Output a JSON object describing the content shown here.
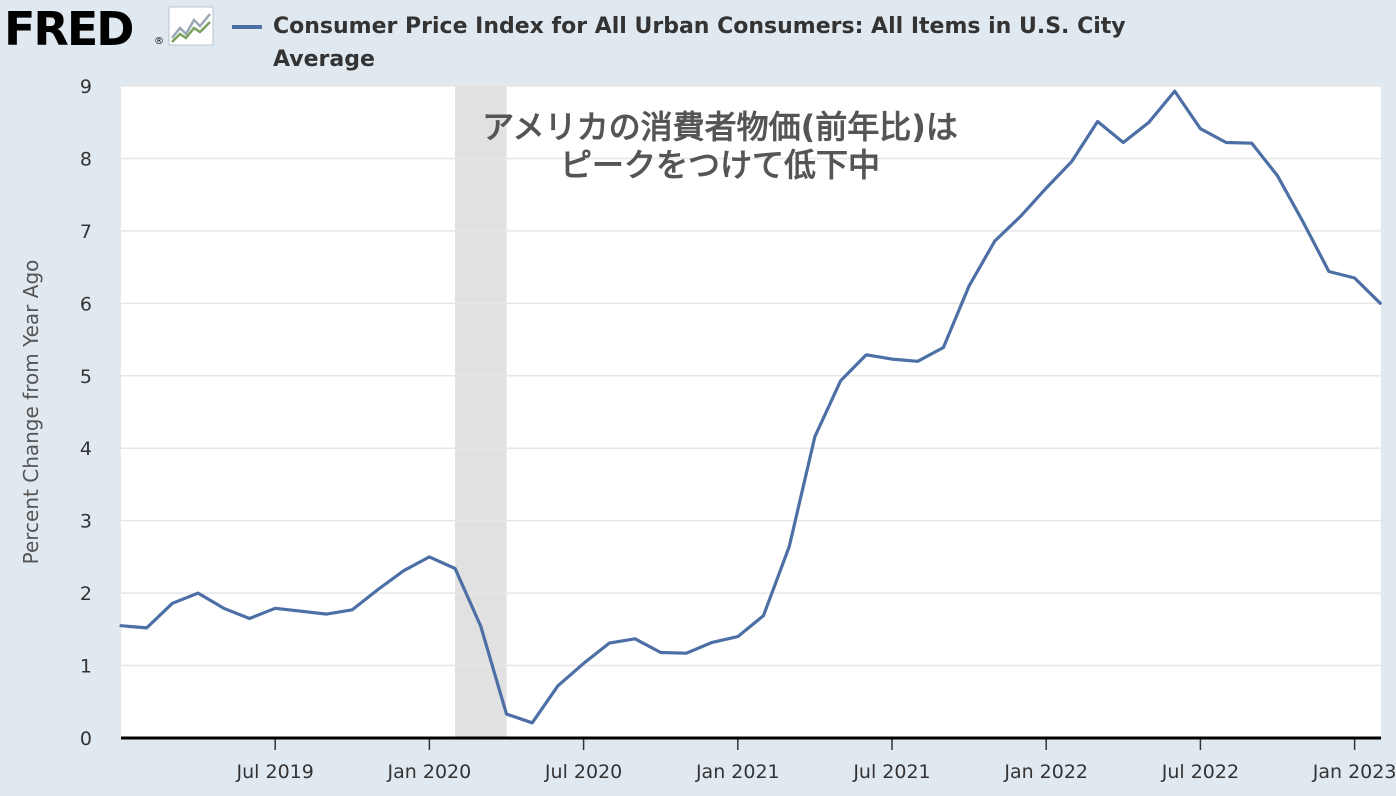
{
  "header": {
    "logo_text": "FRED",
    "logo_mark": "®",
    "logo_icon": "chart-line-icon",
    "series_label": "Consumer Price Index for All Urban Consumers: All Items in U.S. City Average"
  },
  "colors": {
    "background": "#e1e9f0",
    "plot_background": "#ffffff",
    "series_line": "#4c6fa5",
    "recession_band": "#e1e1e1",
    "grid": "#e6e6e6"
  },
  "chart_data": {
    "type": "line",
    "title": "アメリカの消費者物価(前年比)は\nピークをつけて低下中",
    "title_lines": [
      "アメリカの消費者物価(前年比)は",
      "ピークをつけて低下中"
    ],
    "xlabel": "",
    "ylabel": "Percent Change from Year Ago",
    "ylim": [
      0,
      9
    ],
    "y_ticks": [
      0,
      1,
      2,
      3,
      4,
      5,
      6,
      7,
      8,
      9
    ],
    "x_ticks": [
      {
        "date": "2019-07",
        "label": "Jul 2019"
      },
      {
        "date": "2020-01",
        "label": "Jan 2020"
      },
      {
        "date": "2020-07",
        "label": "Jul 2020"
      },
      {
        "date": "2021-01",
        "label": "Jan 2021"
      },
      {
        "date": "2021-07",
        "label": "Jul 2021"
      },
      {
        "date": "2022-01",
        "label": "Jan 2022"
      },
      {
        "date": "2022-07",
        "label": "Jul 2022"
      },
      {
        "date": "2023-01",
        "label": "Jan 2023"
      }
    ],
    "xlim": [
      "2019-01",
      "2023-02"
    ],
    "recession": {
      "start": "2020-02",
      "end": "2020-04"
    },
    "grid": true,
    "legend": "top-left",
    "series": [
      {
        "name": "Consumer Price Index for All Urban Consumers: All Items in U.S. City Average",
        "points": [
          [
            "2019-01",
            1.55
          ],
          [
            "2019-02",
            1.52
          ],
          [
            "2019-03",
            1.86
          ],
          [
            "2019-04",
            2.0
          ],
          [
            "2019-05",
            1.79
          ],
          [
            "2019-06",
            1.65
          ],
          [
            "2019-07",
            1.79
          ],
          [
            "2019-08",
            1.75
          ],
          [
            "2019-09",
            1.71
          ],
          [
            "2019-10",
            1.77
          ],
          [
            "2019-11",
            2.05
          ],
          [
            "2019-12",
            2.31
          ],
          [
            "2020-01",
            2.5
          ],
          [
            "2020-02",
            2.34
          ],
          [
            "2020-03",
            1.54
          ],
          [
            "2020-04",
            0.33
          ],
          [
            "2020-05",
            0.21
          ],
          [
            "2020-06",
            0.72
          ],
          [
            "2020-07",
            1.03
          ],
          [
            "2020-08",
            1.31
          ],
          [
            "2020-09",
            1.37
          ],
          [
            "2020-10",
            1.18
          ],
          [
            "2020-11",
            1.17
          ],
          [
            "2020-12",
            1.32
          ],
          [
            "2021-01",
            1.4
          ],
          [
            "2021-02",
            1.69
          ],
          [
            "2021-03",
            2.64
          ],
          [
            "2021-04",
            4.16
          ],
          [
            "2021-05",
            4.93
          ],
          [
            "2021-06",
            5.29
          ],
          [
            "2021-07",
            5.23
          ],
          [
            "2021-08",
            5.2
          ],
          [
            "2021-09",
            5.39
          ],
          [
            "2021-10",
            6.24
          ],
          [
            "2021-11",
            6.86
          ],
          [
            "2021-12",
            7.2
          ],
          [
            "2022-01",
            7.59
          ],
          [
            "2022-02",
            7.96
          ],
          [
            "2022-03",
            8.51
          ],
          [
            "2022-04",
            8.22
          ],
          [
            "2022-05",
            8.5
          ],
          [
            "2022-06",
            8.93
          ],
          [
            "2022-07",
            8.41
          ],
          [
            "2022-08",
            8.22
          ],
          [
            "2022-09",
            8.21
          ],
          [
            "2022-10",
            7.76
          ],
          [
            "2022-11",
            7.12
          ],
          [
            "2022-12",
            6.44
          ],
          [
            "2023-01",
            6.35
          ],
          [
            "2023-02",
            6.0
          ]
        ]
      }
    ]
  }
}
